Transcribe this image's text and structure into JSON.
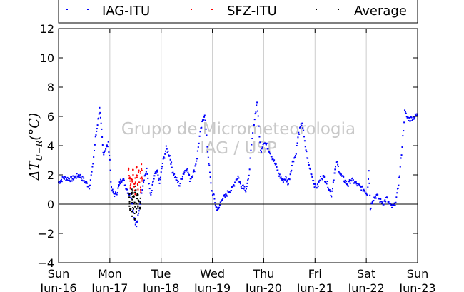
{
  "chart_data": {
    "type": "scatter",
    "ylabel": "ΔT_{U−R}(°C)",
    "ylim": [
      -4,
      12
    ],
    "yticks": [
      -4,
      -2,
      0,
      2,
      4,
      6,
      8,
      10,
      12
    ],
    "xlim": [
      0,
      7
    ],
    "xticks": [
      {
        "x": 0,
        "day": "Sun",
        "date": "Jun-16"
      },
      {
        "x": 1,
        "day": "Mon",
        "date": "Jun-17"
      },
      {
        "x": 2,
        "day": "Tue",
        "date": "Jun-18"
      },
      {
        "x": 3,
        "day": "Wed",
        "date": "Jun-19"
      },
      {
        "x": 4,
        "day": "Thu",
        "date": "Jun-20"
      },
      {
        "x": 5,
        "day": "Fri",
        "date": "Jun-21"
      },
      {
        "x": 6,
        "day": "Sat",
        "date": "Jun-22"
      },
      {
        "x": 7,
        "day": "Sun",
        "date": "Jun-23"
      }
    ],
    "grid": "vertical",
    "hline": 0,
    "legend_position": "top",
    "watermark": [
      "Grupo de Micrometeorologia",
      "IAG / USP"
    ],
    "series": [
      {
        "name": "IAG-ITU",
        "color": "#0000ff",
        "x": [
          0,
          0.1,
          0.25,
          0.4,
          0.5,
          0.6,
          0.66,
          0.72,
          0.76,
          0.8,
          0.84,
          0.87,
          0.92,
          0.97,
          1.0,
          1.03,
          1.1,
          1.15,
          1.2,
          1.25,
          1.3,
          1.36,
          1.42,
          1.47,
          1.52,
          1.57,
          1.62,
          1.67,
          1.72,
          1.8,
          1.85,
          1.88,
          1.93,
          1.97,
          2.0,
          2.03,
          2.1,
          2.17,
          2.22,
          2.28,
          2.36,
          2.42,
          2.5,
          2.56,
          2.64,
          2.7,
          2.75,
          2.8,
          2.85,
          2.9,
          2.94,
          2.98,
          3.03,
          3.07,
          3.12,
          3.18,
          3.25,
          3.32,
          3.38,
          3.45,
          3.5,
          3.56,
          3.6,
          3.65,
          3.7,
          3.75,
          3.8,
          3.87,
          3.94,
          4.0,
          4.06,
          4.12,
          4.18,
          4.24,
          4.3,
          4.37,
          4.43,
          4.48,
          4.53,
          4.57,
          4.62,
          4.68,
          4.75,
          4.8,
          4.87,
          4.92,
          4.97,
          5.0,
          5.05,
          5.12,
          5.18,
          5.25,
          5.32,
          5.38,
          5.42,
          5.5,
          5.6,
          5.65,
          5.7,
          5.8,
          5.87,
          5.95,
          6.02,
          6.05,
          6.08,
          6.12,
          6.2,
          6.28,
          6.34,
          6.4,
          6.45,
          6.5,
          6.55,
          6.6,
          6.65,
          6.7,
          6.75,
          6.8,
          6.85,
          7.0
        ],
        "y": [
          1.5,
          1.8,
          1.7,
          2.0,
          1.6,
          1.2,
          2.4,
          4.5,
          5.5,
          6.5,
          5.0,
          3.5,
          3.8,
          4.1,
          3.0,
          1.0,
          0.6,
          0.9,
          1.5,
          1.8,
          1.3,
          0.8,
          0.5,
          -0.8,
          -1.5,
          -0.5,
          0.9,
          1.8,
          2.3,
          0.5,
          1.6,
          2.0,
          2.2,
          1.4,
          2.1,
          2.8,
          3.8,
          3.3,
          2.3,
          1.8,
          1.3,
          2.0,
          2.5,
          1.7,
          2.2,
          3.2,
          4.6,
          5.5,
          6.2,
          4.0,
          2.5,
          1.0,
          0.5,
          -0.2,
          -0.4,
          0.4,
          0.5,
          0.9,
          1.0,
          1.6,
          1.9,
          1.2,
          1.3,
          1.0,
          1.6,
          3.5,
          5.3,
          7.0,
          3.6,
          4.3,
          4.0,
          3.6,
          3.1,
          2.6,
          2.0,
          1.6,
          1.8,
          1.4,
          2.3,
          3.0,
          3.3,
          4.8,
          5.6,
          4.2,
          2.8,
          2.2,
          1.6,
          1.2,
          1.2,
          1.9,
          1.8,
          1.3,
          0.6,
          2.1,
          2.9,
          2.0,
          1.5,
          1.3,
          1.7,
          1.4,
          1.2,
          1.0,
          0.7,
          2.4,
          -0.3,
          0.3,
          0.6,
          0.2,
          0.1,
          0.4,
          0.0,
          -0.2,
          -0.1,
          0.6,
          2.0,
          4.0,
          6.3,
          5.9,
          5.8,
          6.1
        ]
      },
      {
        "name": "SFZ-ITU",
        "color": "#ff0000",
        "x": [
          1.37,
          1.38,
          1.4,
          1.41,
          1.43,
          1.45,
          1.47,
          1.49,
          1.5,
          1.52,
          1.53,
          1.55,
          1.56,
          1.58,
          1.59,
          1.61,
          1.62,
          1.63
        ],
        "y": [
          2.5,
          1.9,
          1.5,
          1.1,
          1.7,
          2.2,
          1.3,
          0.9,
          1.6,
          2.4,
          1.8,
          1.2,
          2.1,
          1.5,
          2.0,
          1.0,
          2.5,
          1.7
        ]
      },
      {
        "name": "Average",
        "color": "#000000",
        "x": [
          1.38,
          1.39,
          1.4,
          1.42,
          1.43,
          1.44,
          1.45,
          1.46,
          1.47,
          1.48,
          1.49,
          1.5,
          1.51,
          1.52,
          1.53,
          1.54,
          1.55,
          1.56,
          1.58,
          1.6
        ],
        "y": [
          0.6,
          0.1,
          -0.3,
          0.8,
          -0.6,
          0.3,
          0.9,
          -0.2,
          0.5,
          -0.8,
          0.0,
          1.0,
          -0.5,
          0.2,
          0.7,
          -0.3,
          0.4,
          0.1,
          -0.1,
          0.3
        ]
      }
    ]
  }
}
